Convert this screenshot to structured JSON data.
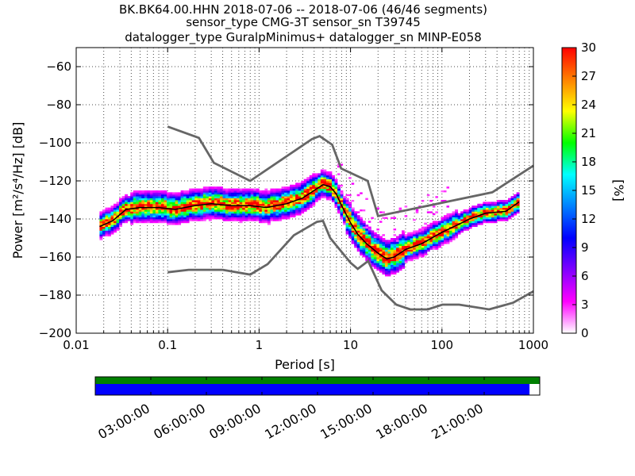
{
  "title": {
    "line1": "BK.BK64.00.HHN   2018-07-06 -- 2018-07-06  (46/46 segments)",
    "line2": "sensor_type CMG-3T sensor_sn T39745",
    "line3": "datalogger_type GuralpMinimus+ datalogger_sn MINP-E058"
  },
  "chart_data": [
    {
      "type": "heatmap",
      "xlabel": "Period [s]",
      "ylabel": "Power [m²/s⁴/Hz] [dB]",
      "x_scale": "log",
      "xlim": [
        0.01,
        1000
      ],
      "ylim": [
        -200,
        -50
      ],
      "x_ticks": [
        0.01,
        0.1,
        1,
        10,
        100,
        1000
      ],
      "x_tick_labels": [
        "0.01",
        "0.1",
        "1",
        "10",
        "100",
        "1000"
      ],
      "y_ticks": [
        -200,
        -180,
        -160,
        -140,
        -120,
        -100,
        -80,
        -60
      ],
      "y_tick_labels": [
        "−200",
        "−180",
        "−160",
        "−140",
        "−120",
        "−100",
        "−80",
        "−60"
      ],
      "grid": true,
      "colorbar": {
        "label": "[%]",
        "range": [
          0,
          30
        ],
        "ticks": [
          "0",
          "3",
          "6",
          "9",
          "12",
          "15",
          "18",
          "21",
          "24",
          "27",
          "30"
        ],
        "colormap": [
          "#ffffff",
          "#ff00ff",
          "#8000ff",
          "#0000ff",
          "#0080ff",
          "#00ffff",
          "#00ff00",
          "#ffff00",
          "#ff8000",
          "#ff0000"
        ]
      },
      "reference_curves": [
        {
          "x": [
            0.1,
            0.22,
            0.32,
            0.8,
            3.8,
            4.6,
            6.3,
            7.9,
            15.4,
            20,
            354.8,
            1000
          ],
          "y": [
            -91.5,
            -97.4,
            -110.5,
            -120,
            -98,
            -96.5,
            -101,
            -113.5,
            -120,
            -138.5,
            -126,
            -112
          ]
        },
        {
          "x": [
            0.1,
            0.17,
            0.4,
            0.8,
            1.24,
            2.4,
            4.3,
            5,
            6,
            10,
            12,
            15.6,
            21.9,
            31.6,
            45,
            70,
            101,
            154,
            328,
            600,
            1000
          ],
          "y": [
            -168,
            -166.7,
            -166.7,
            -169.2,
            -163.7,
            -148.6,
            -141.5,
            -141,
            -150,
            -163,
            -166.2,
            -162.1,
            -177.5,
            -185,
            -187.5,
            -187.5,
            -185,
            -185,
            -187.5,
            -184,
            -178
          ]
        }
      ],
      "mode_curve": {
        "x": [
          0.018,
          0.025,
          0.035,
          0.05,
          0.08,
          0.12,
          0.2,
          0.3,
          0.5,
          0.8,
          1.2,
          2,
          3,
          4,
          5,
          6,
          7,
          8,
          10,
          12,
          15,
          20,
          25,
          30,
          40,
          60,
          100,
          150,
          200,
          300,
          500,
          700
        ],
        "y": [
          -144,
          -141,
          -135,
          -134,
          -134,
          -135,
          -133,
          -132,
          -133,
          -133,
          -134,
          -132,
          -129,
          -125,
          -122,
          -123,
          -127,
          -133,
          -142,
          -148,
          -153,
          -158,
          -161,
          -160,
          -156,
          -153,
          -147,
          -143,
          -140,
          -137,
          -136,
          -131
        ]
      }
    },
    {
      "type": "timeline",
      "x_tick_labels": [
        "03:00:00",
        "06:00:00",
        "09:00:00",
        "12:00:00",
        "15:00:00",
        "18:00:00",
        "21:00:00"
      ],
      "rows": [
        {
          "color": "#008000",
          "coverage": 1.0
        },
        {
          "color": "#0000ff",
          "coverage": 0.977
        }
      ]
    }
  ]
}
